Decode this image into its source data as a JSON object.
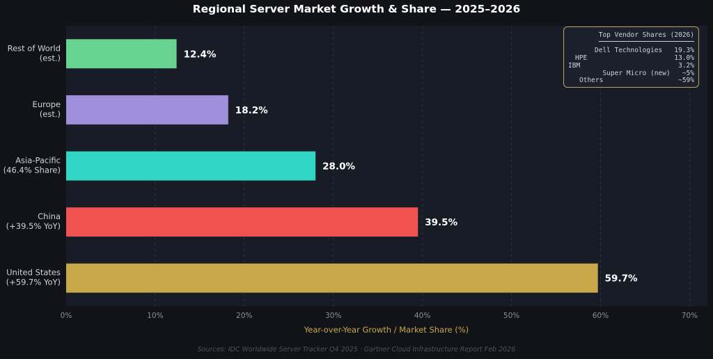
{
  "chart_data": {
    "type": "bar",
    "orientation": "horizontal",
    "title": "Regional Server Market Growth & Share — 2025–2026",
    "xlabel": "Year-over-Year Growth / Market Share (%)",
    "xlim": [
      0,
      72
    ],
    "xticks": [
      0,
      10,
      20,
      30,
      40,
      50,
      60,
      70
    ],
    "xtick_labels": [
      "0%",
      "10%",
      "20%",
      "30%",
      "40%",
      "50%",
      "60%",
      "70%"
    ],
    "grid": "vertical dashed",
    "categories": [
      [
        "Rest of World",
        "(est.)"
      ],
      [
        "Europe",
        "(est.)"
      ],
      [
        "Asia-Pacific",
        "(46.4% Share)"
      ],
      [
        "China",
        "(+39.5% YoY)"
      ],
      [
        "United States",
        "(+59.7% YoY)"
      ]
    ],
    "values": [
      12.4,
      18.2,
      28.0,
      39.5,
      59.7
    ],
    "value_labels": [
      "12.4%",
      "18.2%",
      "28.0%",
      "39.5%",
      "59.7%"
    ],
    "colors": [
      "#68d391",
      "#9f8fdb",
      "#2fd6c4",
      "#f05252",
      "#c9a84c"
    ],
    "legend_placement": "top-right",
    "footer": "Sources: IDC Worldwide Server Tracker Q4 2025 · Gartner Cloud Infrastructure Report Feb 2026"
  },
  "vendor_box": {
    "title": "Top Vendor Shares (2026)",
    "lines": [
      "Dell Technologies   19.3%",
      "HPE",
      "13.0%",
      "IBM",
      "3.2%",
      "Super Micro (new)   ~5%",
      "Others",
      "~59%"
    ]
  },
  "colors": {
    "background": "#111318",
    "plot_background": "#181c26",
    "axis_label": "#c9a84c",
    "tick_text": "#8a8f9c",
    "grid": "#2e3340",
    "legend_border": "#bfa35a"
  }
}
